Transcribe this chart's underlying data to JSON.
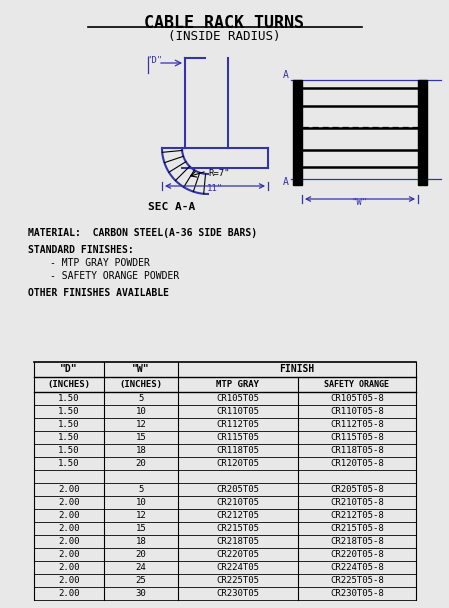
{
  "title1": "CABLE RACK TURNS",
  "title2": "(INSIDE RADIUS)",
  "material_text": "MATERIAL:  CARBON STEEL(A-36 SIDE BARS)",
  "standard_finishes_title": "STANDARD FINISHES:",
  "finishes": [
    "- MTP GRAY POWDER",
    "- SAFETY ORANGE POWDER"
  ],
  "other_finishes": "OTHER FINISHES AVAILABLE",
  "sec_label": "SEC A-A",
  "bg_color": "#e8e8e8",
  "table_col0_header": "\"D\"",
  "table_col1_header": "\"W\"",
  "table_col2_header": "FINISH",
  "table_subh0": "(INCHES)",
  "table_subh1": "(INCHES)",
  "table_subh2": "MTP GRAY",
  "table_subh3": "SAFETY ORANGE",
  "table_data": [
    [
      "1.50",
      "5",
      "CR105T05",
      "CR105T05-8"
    ],
    [
      "1.50",
      "10",
      "CR110T05",
      "CR110T05-8"
    ],
    [
      "1.50",
      "12",
      "CR112T05",
      "CR112T05-8"
    ],
    [
      "1.50",
      "15",
      "CR115T05",
      "CR115T05-8"
    ],
    [
      "1.50",
      "18",
      "CR118T05",
      "CR118T05-8"
    ],
    [
      "1.50",
      "20",
      "CR120T05",
      "CR120T05-8"
    ],
    [
      "",
      "",
      "",
      ""
    ],
    [
      "2.00",
      "5",
      "CR205T05",
      "CR205T05-8"
    ],
    [
      "2.00",
      "10",
      "CR210T05",
      "CR210T05-8"
    ],
    [
      "2.00",
      "12",
      "CR212T05",
      "CR212T05-8"
    ],
    [
      "2.00",
      "15",
      "CR215T05",
      "CR215T05-8"
    ],
    [
      "2.00",
      "18",
      "CR218T05",
      "CR218T05-8"
    ],
    [
      "2.00",
      "20",
      "CR220T05",
      "CR220T05-8"
    ],
    [
      "2.00",
      "24",
      "CR224T05",
      "CR224T05-8"
    ],
    [
      "2.00",
      "25",
      "CR225T05",
      "CR225T05-8"
    ],
    [
      "2.00",
      "30",
      "CR230T05",
      "CR230T05-8"
    ]
  ],
  "blue_color": "#3333aa",
  "line_color": "#000000",
  "r_label": "R=7\"",
  "w_label": "\"W\"",
  "d_label": "\"D\"",
  "dim_11": "11\"",
  "dim_a_top": "A",
  "dim_a_bot": "A"
}
